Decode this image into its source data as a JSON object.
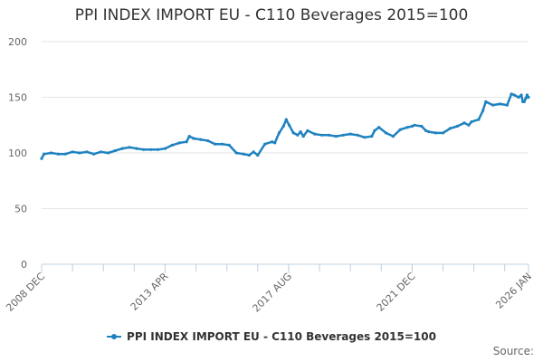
{
  "chart_data": {
    "type": "line",
    "title": "PPI INDEX IMPORT EU - C110 Beverages 2015=100",
    "xlabel": "",
    "ylabel": "",
    "ylim": [
      0,
      200
    ],
    "yticks": [
      "0",
      "50",
      "100",
      "150",
      "200"
    ],
    "xticks": [
      {
        "label": "2008 DEC",
        "t": 2008.917
      },
      {
        "label": "2013 APR",
        "t": 2013.25
      },
      {
        "label": "2017 AUG",
        "t": 2017.583
      },
      {
        "label": "2021 DEC",
        "t": 2021.917
      },
      {
        "label": "2026 JAN",
        "t": 2026.0
      }
    ],
    "grid": "horizontal",
    "legend": "bottom",
    "color": "#1f82c0",
    "series": [
      {
        "name": "PPI INDEX IMPORT EU - C110 Beverages 2015=100",
        "points": [
          [
            2008.917,
            95
          ],
          [
            2009.0,
            99
          ],
          [
            2009.25,
            100
          ],
          [
            2009.5,
            99
          ],
          [
            2009.75,
            99
          ],
          [
            2010.0,
            101
          ],
          [
            2010.25,
            100
          ],
          [
            2010.5,
            101
          ],
          [
            2010.75,
            99
          ],
          [
            2011.0,
            101
          ],
          [
            2011.25,
            100
          ],
          [
            2011.5,
            102
          ],
          [
            2011.75,
            104
          ],
          [
            2012.0,
            105
          ],
          [
            2012.25,
            104
          ],
          [
            2012.5,
            103
          ],
          [
            2012.75,
            103
          ],
          [
            2013.0,
            103
          ],
          [
            2013.25,
            104
          ],
          [
            2013.5,
            107
          ],
          [
            2013.75,
            109
          ],
          [
            2014.0,
            110
          ],
          [
            2014.1,
            115
          ],
          [
            2014.25,
            113
          ],
          [
            2014.5,
            112
          ],
          [
            2014.75,
            111
          ],
          [
            2015.0,
            108
          ],
          [
            2015.25,
            108
          ],
          [
            2015.5,
            107
          ],
          [
            2015.75,
            100
          ],
          [
            2016.0,
            99
          ],
          [
            2016.2,
            98
          ],
          [
            2016.35,
            101
          ],
          [
            2016.5,
            98
          ],
          [
            2016.75,
            108
          ],
          [
            2017.0,
            110
          ],
          [
            2017.1,
            109
          ],
          [
            2017.25,
            118
          ],
          [
            2017.4,
            124
          ],
          [
            2017.5,
            130
          ],
          [
            2017.6,
            125
          ],
          [
            2017.75,
            118
          ],
          [
            2017.9,
            116
          ],
          [
            2018.0,
            119
          ],
          [
            2018.1,
            115
          ],
          [
            2018.25,
            120
          ],
          [
            2018.5,
            117
          ],
          [
            2018.75,
            116
          ],
          [
            2019.0,
            116
          ],
          [
            2019.25,
            115
          ],
          [
            2019.5,
            116
          ],
          [
            2019.75,
            117
          ],
          [
            2020.0,
            116
          ],
          [
            2020.25,
            114
          ],
          [
            2020.5,
            115
          ],
          [
            2020.6,
            120
          ],
          [
            2020.75,
            123
          ],
          [
            2021.0,
            118
          ],
          [
            2021.25,
            115
          ],
          [
            2021.5,
            121
          ],
          [
            2021.75,
            123
          ],
          [
            2021.917,
            124
          ],
          [
            2022.0,
            125
          ],
          [
            2022.25,
            124
          ],
          [
            2022.4,
            120
          ],
          [
            2022.5,
            119
          ],
          [
            2022.75,
            118
          ],
          [
            2023.0,
            118
          ],
          [
            2023.25,
            122
          ],
          [
            2023.5,
            124
          ],
          [
            2023.75,
            127
          ],
          [
            2023.9,
            125
          ],
          [
            2024.0,
            128
          ],
          [
            2024.25,
            130
          ],
          [
            2024.4,
            138
          ],
          [
            2024.5,
            146
          ],
          [
            2024.75,
            143
          ],
          [
            2025.0,
            144
          ],
          [
            2025.25,
            143
          ],
          [
            2025.4,
            153
          ],
          [
            2025.5,
            152
          ],
          [
            2025.65,
            150
          ],
          [
            2025.75,
            152
          ],
          [
            2025.8,
            146
          ],
          [
            2025.85,
            146
          ],
          [
            2025.9,
            149
          ],
          [
            2025.95,
            152
          ],
          [
            2026.0,
            150
          ]
        ]
      }
    ],
    "source_label": "Source:"
  }
}
